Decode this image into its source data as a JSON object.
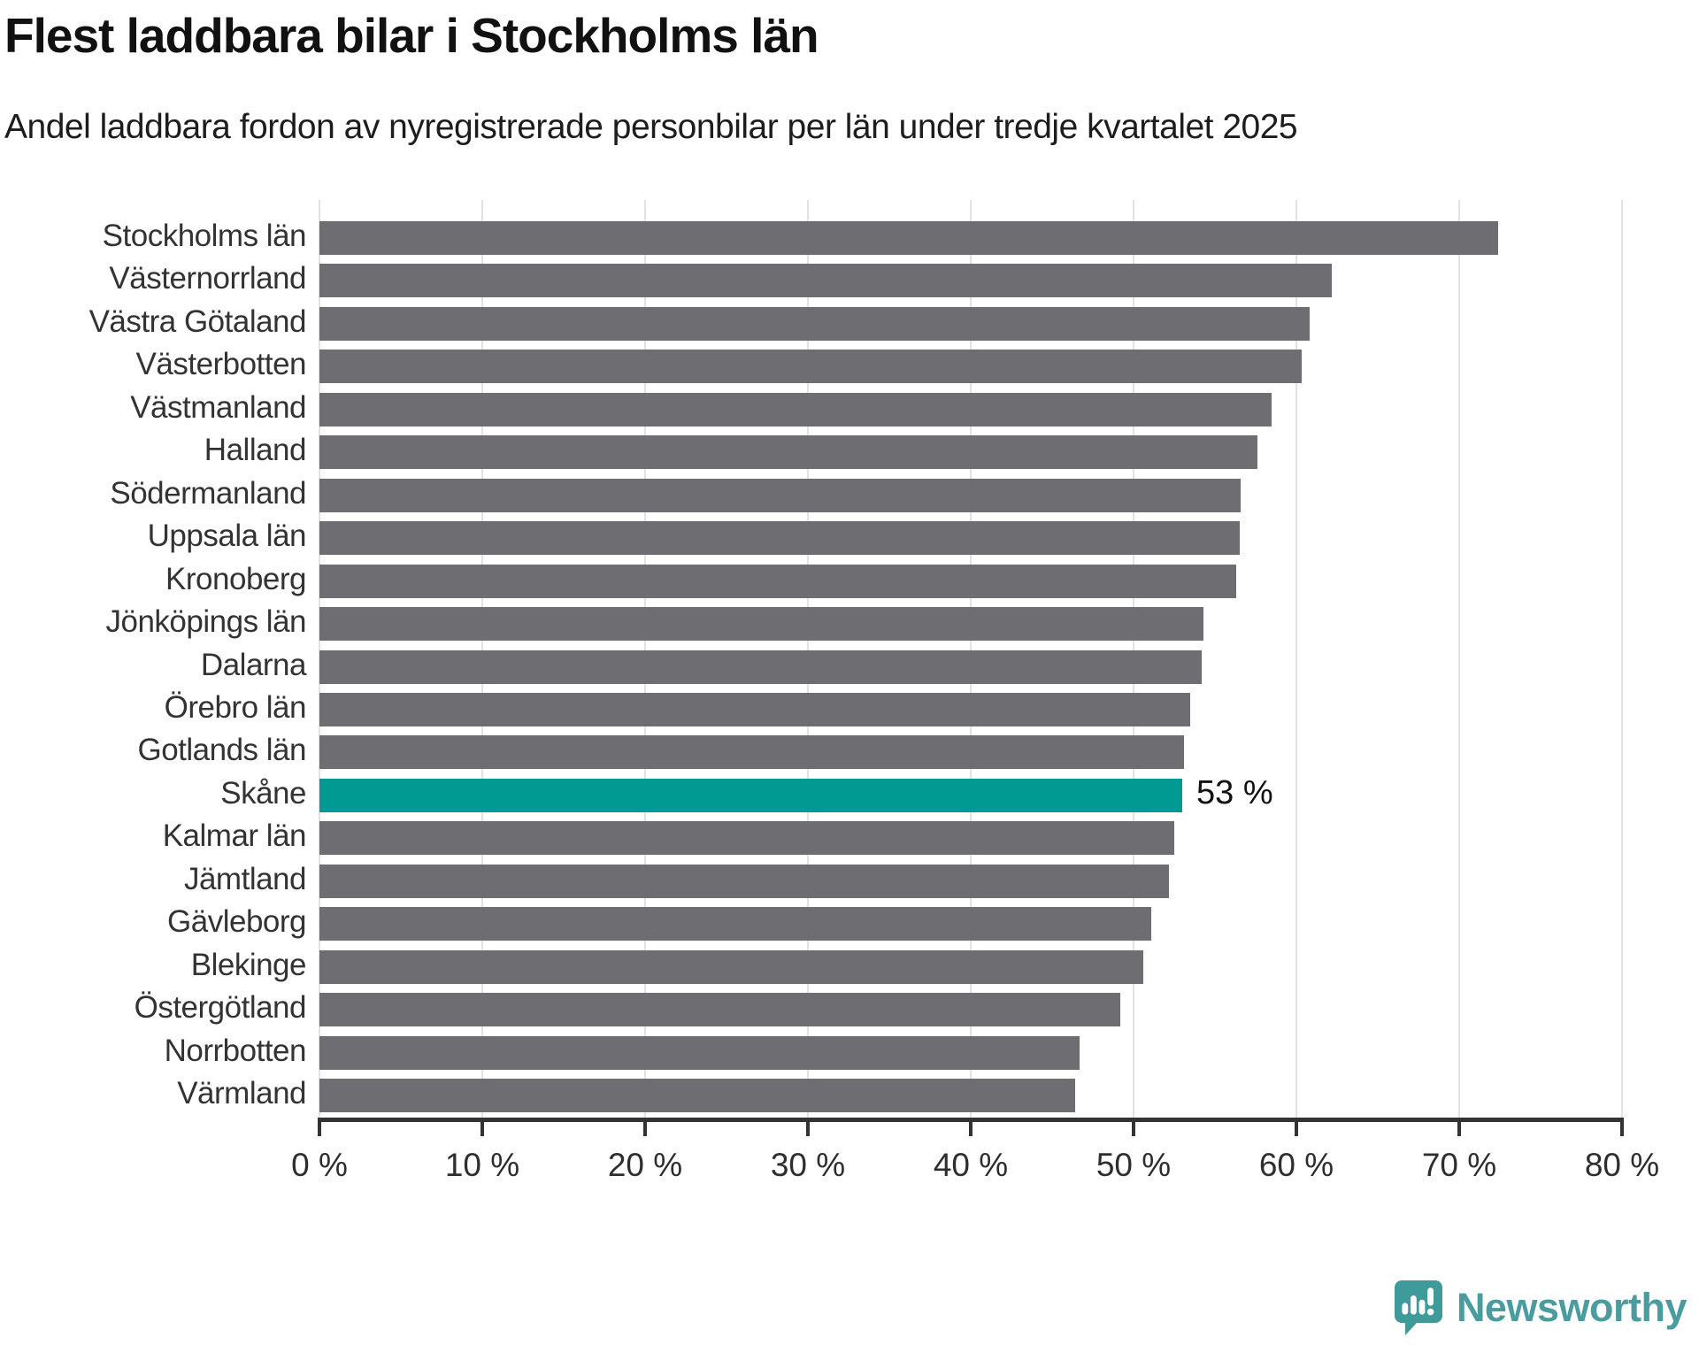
{
  "title": "Flest laddbara bilar i Stockholms län",
  "subtitle": "Andel laddbara fordon av nyregistrerade personbilar per län under tredje kvartalet 2025",
  "branding": {
    "name": "Newsworthy",
    "logo_icon": "speech-bubble-bar-chart-icon",
    "color": "#4a9c9f",
    "icon_color": "#3e9b99"
  },
  "colors": {
    "bar_default": "#6e6e72",
    "bar_highlight": "#009a93",
    "gridline": "#e2e2e2",
    "axis": "#333333",
    "text_dark": "#111111",
    "label_gray": "#333333"
  },
  "chart_data": {
    "type": "bar",
    "orientation": "horizontal",
    "title": "Flest laddbara bilar i Stockholms län",
    "subtitle": "Andel laddbara fordon av nyregistrerade personbilar per län under tredje kvartalet 2025",
    "xlabel": "",
    "ylabel": "",
    "xlim": [
      0,
      80
    ],
    "grid": true,
    "unit": "%",
    "categories": [
      "Stockholms län",
      "Västernorrland",
      "Västra Götaland",
      "Västerbotten",
      "Västmanland",
      "Halland",
      "Södermanland",
      "Uppsala län",
      "Kronoberg",
      "Jönköpings län",
      "Dalarna",
      "Örebro län",
      "Gotlands län",
      "Skåne",
      "Kalmar län",
      "Jämtland",
      "Gävleborg",
      "Blekinge",
      "Östergötland",
      "Norrbotten",
      "Värmland"
    ],
    "values": [
      72.4,
      62.2,
      60.8,
      60.3,
      58.5,
      57.6,
      56.6,
      56.5,
      56.3,
      54.3,
      54.2,
      53.5,
      53.1,
      53.0,
      52.5,
      52.2,
      51.1,
      50.6,
      49.2,
      46.7,
      46.4
    ],
    "highlight": {
      "category": "Skåne",
      "index": 13,
      "value_label": "53 %"
    },
    "x_ticks": [
      {
        "value": 0,
        "label": "0 %"
      },
      {
        "value": 10,
        "label": "10 %"
      },
      {
        "value": 20,
        "label": "20 %"
      },
      {
        "value": 30,
        "label": "30 %"
      },
      {
        "value": 40,
        "label": "40 %"
      },
      {
        "value": 50,
        "label": "50 %"
      },
      {
        "value": 60,
        "label": "60 %"
      },
      {
        "value": 70,
        "label": "70 %"
      },
      {
        "value": 80,
        "label": "80 %"
      }
    ]
  }
}
